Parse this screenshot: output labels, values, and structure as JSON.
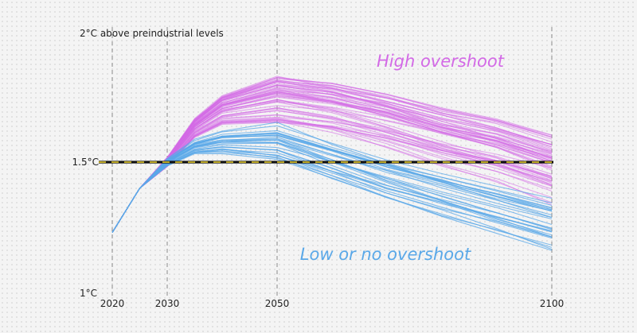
{
  "chart_data": {
    "type": "line",
    "title": "",
    "xlabel": "",
    "ylabel": "",
    "xlim": [
      2020,
      2100
    ],
    "ylim": [
      1.0,
      2.0
    ],
    "xticks": [
      {
        "value": 2020,
        "label": "2020"
      },
      {
        "value": 2030,
        "label": "2030"
      },
      {
        "value": 2050,
        "label": "2050"
      },
      {
        "value": 2100,
        "label": "2100"
      }
    ],
    "yticks": [
      {
        "value": 1.0,
        "label": "1°C"
      },
      {
        "value": 1.5,
        "label": "1.5°C"
      },
      {
        "value": 2.0,
        "label": "2°C above preindustrial levels"
      }
    ],
    "grid": "vertical dashed lines at x ticks",
    "reference_line": {
      "y": 1.5,
      "style": "black and yellow dashed"
    },
    "annotations": [
      {
        "text": "High overshoot",
        "color": "#d36ae6"
      },
      {
        "text": "Low or no overshoot",
        "color": "#5aa8e8"
      }
    ],
    "x": [
      2020,
      2025,
      2030,
      2035,
      2040,
      2050,
      2060,
      2070,
      2080,
      2090,
      2100
    ],
    "groups": [
      {
        "color": "#d36ae6",
        "series_count": 60,
        "typical_values": [
          1.23,
          1.4,
          1.5,
          1.63,
          1.7,
          1.74,
          1.71,
          1.66,
          1.6,
          1.55,
          1.48
        ]
      },
      {
        "color": "#5aa8e8",
        "series_count": 30,
        "typical_values": [
          1.23,
          1.4,
          1.5,
          1.56,
          1.58,
          1.58,
          1.51,
          1.44,
          1.38,
          1.32,
          1.26
        ]
      }
    ],
    "colors": {
      "high": "#d36ae6",
      "low": "#5aa8e8",
      "reference_dash": "#f3d72c"
    }
  }
}
